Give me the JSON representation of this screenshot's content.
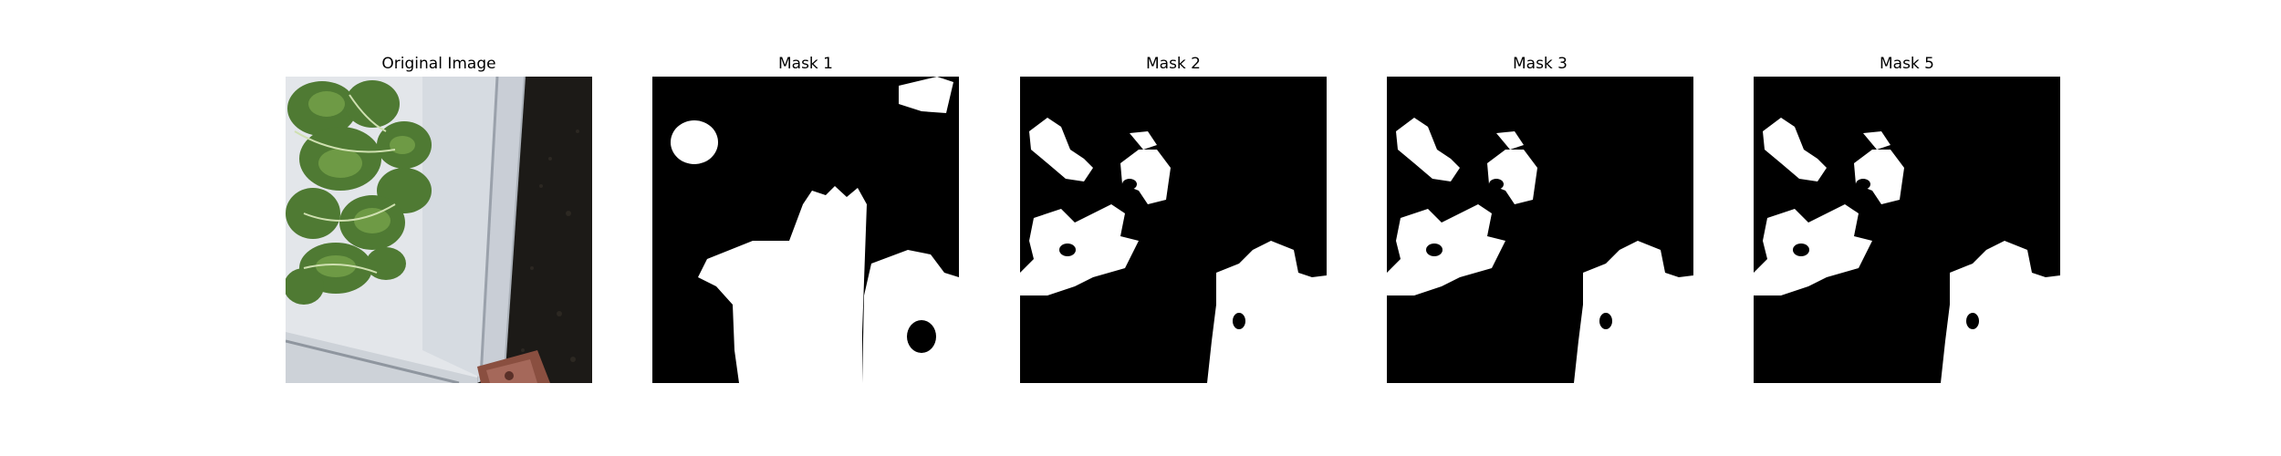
{
  "panels": [
    {
      "title": "Original Image"
    },
    {
      "title": "Mask 1"
    },
    {
      "title": "Mask 2"
    },
    {
      "title": "Mask 3"
    },
    {
      "title": "Mask 5"
    }
  ],
  "colors": {
    "background": "#ffffff",
    "mask_background": "#000000",
    "mask_foreground": "#ffffff",
    "leaf_green": "#4f7a33",
    "tray_white": "#dfe3e8",
    "soil_dark": "#1c1a17",
    "clay_red": "#8a4f40"
  }
}
